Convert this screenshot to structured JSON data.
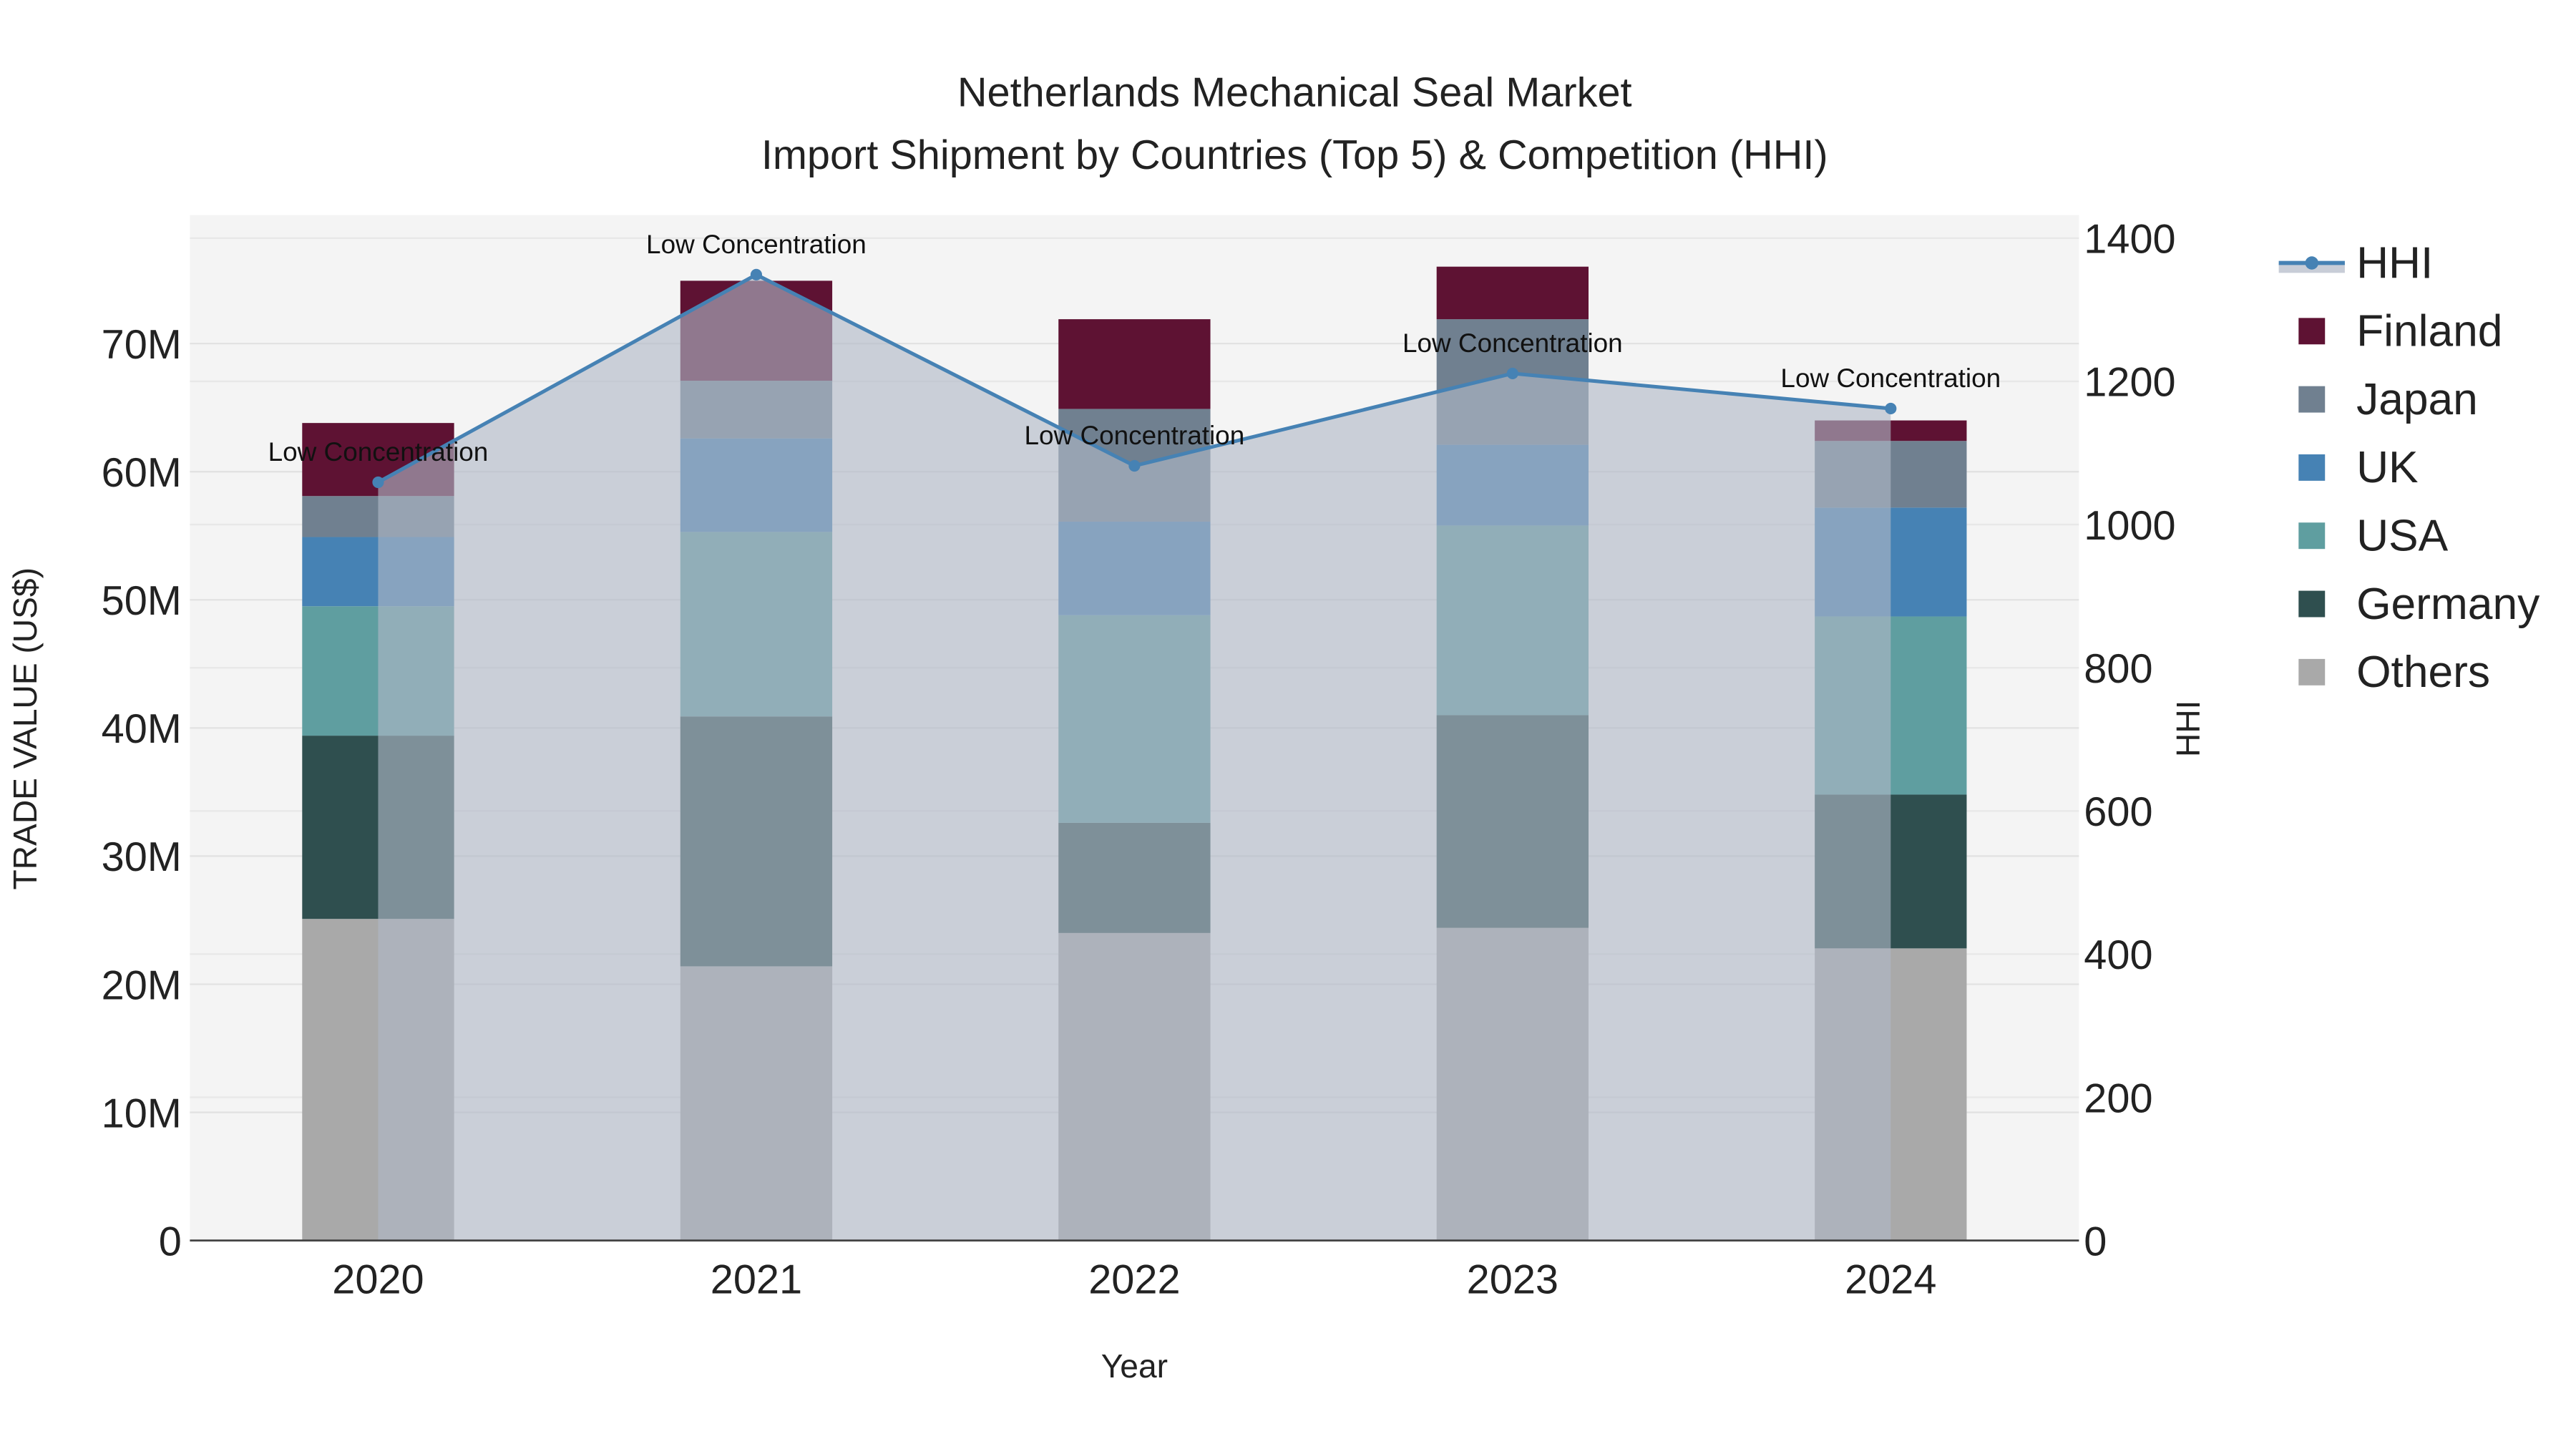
{
  "chart_data": {
    "type": "bar",
    "title": "Netherlands Mechanical Seal Market",
    "subtitle": "Import Shipment by Countries (Top 5) & Competition (HHI)",
    "xlabel": "Year",
    "ylabel": "TRADE VALUE (US$)",
    "y2label": "HHI",
    "categories": [
      "2020",
      "2021",
      "2022",
      "2023",
      "2024"
    ],
    "ylim": [
      0,
      80000000
    ],
    "yticks": [
      0,
      10000000,
      20000000,
      30000000,
      40000000,
      50000000,
      60000000,
      70000000
    ],
    "ytick_labels": [
      "0",
      "10M",
      "20M",
      "30M",
      "40M",
      "50M",
      "60M",
      "70M"
    ],
    "y2lim": [
      0,
      1430
    ],
    "y2ticks": [
      0,
      200,
      400,
      600,
      800,
      1000,
      1200,
      1400
    ],
    "y2tick_labels": [
      "0",
      "200",
      "400",
      "600",
      "800",
      "1000",
      "1200",
      "1400"
    ],
    "stacked": true,
    "series": [
      {
        "name": "Others",
        "color": "#a9a9a9",
        "values": [
          25100000,
          21400000,
          24000000,
          24400000,
          22800000
        ]
      },
      {
        "name": "Germany",
        "color": "#2f4f4f",
        "values": [
          14300000,
          19500000,
          8600000,
          16600000,
          12000000
        ]
      },
      {
        "name": "USA",
        "color": "#5f9ea0",
        "values": [
          10100000,
          14400000,
          16200000,
          14800000,
          13900000
        ]
      },
      {
        "name": "UK",
        "color": "#4682b4",
        "values": [
          5400000,
          7300000,
          7300000,
          6300000,
          8500000
        ]
      },
      {
        "name": "Japan",
        "color": "#708090",
        "values": [
          3200000,
          4500000,
          8800000,
          9800000,
          5200000
        ]
      },
      {
        "name": "Finland",
        "color": "#5e1233",
        "values": [
          5700000,
          7800000,
          7000000,
          4100000,
          1600000
        ]
      }
    ],
    "line": {
      "name": "HHI",
      "color": "#4682b4",
      "values": [
        1059,
        1349,
        1082,
        1211,
        1162
      ],
      "annotations": [
        "Low Concentration",
        "Low Concentration",
        "Low Concentration",
        "Low Concentration",
        "Low Concentration"
      ]
    },
    "legend_order": [
      "HHI",
      "Finland",
      "Japan",
      "UK",
      "USA",
      "Germany",
      "Others"
    ],
    "legend_placement": "right",
    "grid": true
  }
}
